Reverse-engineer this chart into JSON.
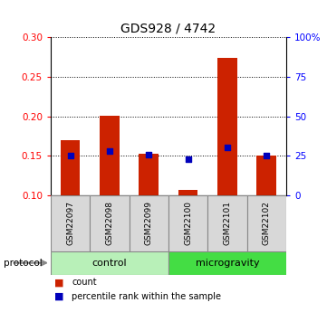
{
  "title": "GDS928 / 4742",
  "samples": [
    "GSM22097",
    "GSM22098",
    "GSM22099",
    "GSM22100",
    "GSM22101",
    "GSM22102"
  ],
  "red_values": [
    0.17,
    0.201,
    0.152,
    0.107,
    0.274,
    0.15
  ],
  "blue_values": [
    0.15,
    0.156,
    0.151,
    0.145,
    0.16,
    0.15
  ],
  "red_base": 0.1,
  "ylim": [
    0.1,
    0.3
  ],
  "yticks": [
    0.1,
    0.15,
    0.2,
    0.25,
    0.3
  ],
  "right_ytick_pcts": [
    0,
    25,
    50,
    75,
    100
  ],
  "right_ylabels": [
    "0",
    "25",
    "50",
    "75",
    "100%"
  ],
  "groups": [
    {
      "label": "control",
      "start": 0,
      "end": 3,
      "color": "#b8f0b8"
    },
    {
      "label": "microgravity",
      "start": 3,
      "end": 6,
      "color": "#44dd44"
    }
  ],
  "protocol_label": "protocol",
  "legend_count": "count",
  "legend_pct": "percentile rank within the sample",
  "bar_color": "#cc2200",
  "dot_color": "#0000bb",
  "bar_width": 0.5,
  "dot_size": 25,
  "title_fontsize": 10,
  "tick_fontsize": 7.5,
  "sample_fontsize": 6.5,
  "group_fontsize": 8
}
